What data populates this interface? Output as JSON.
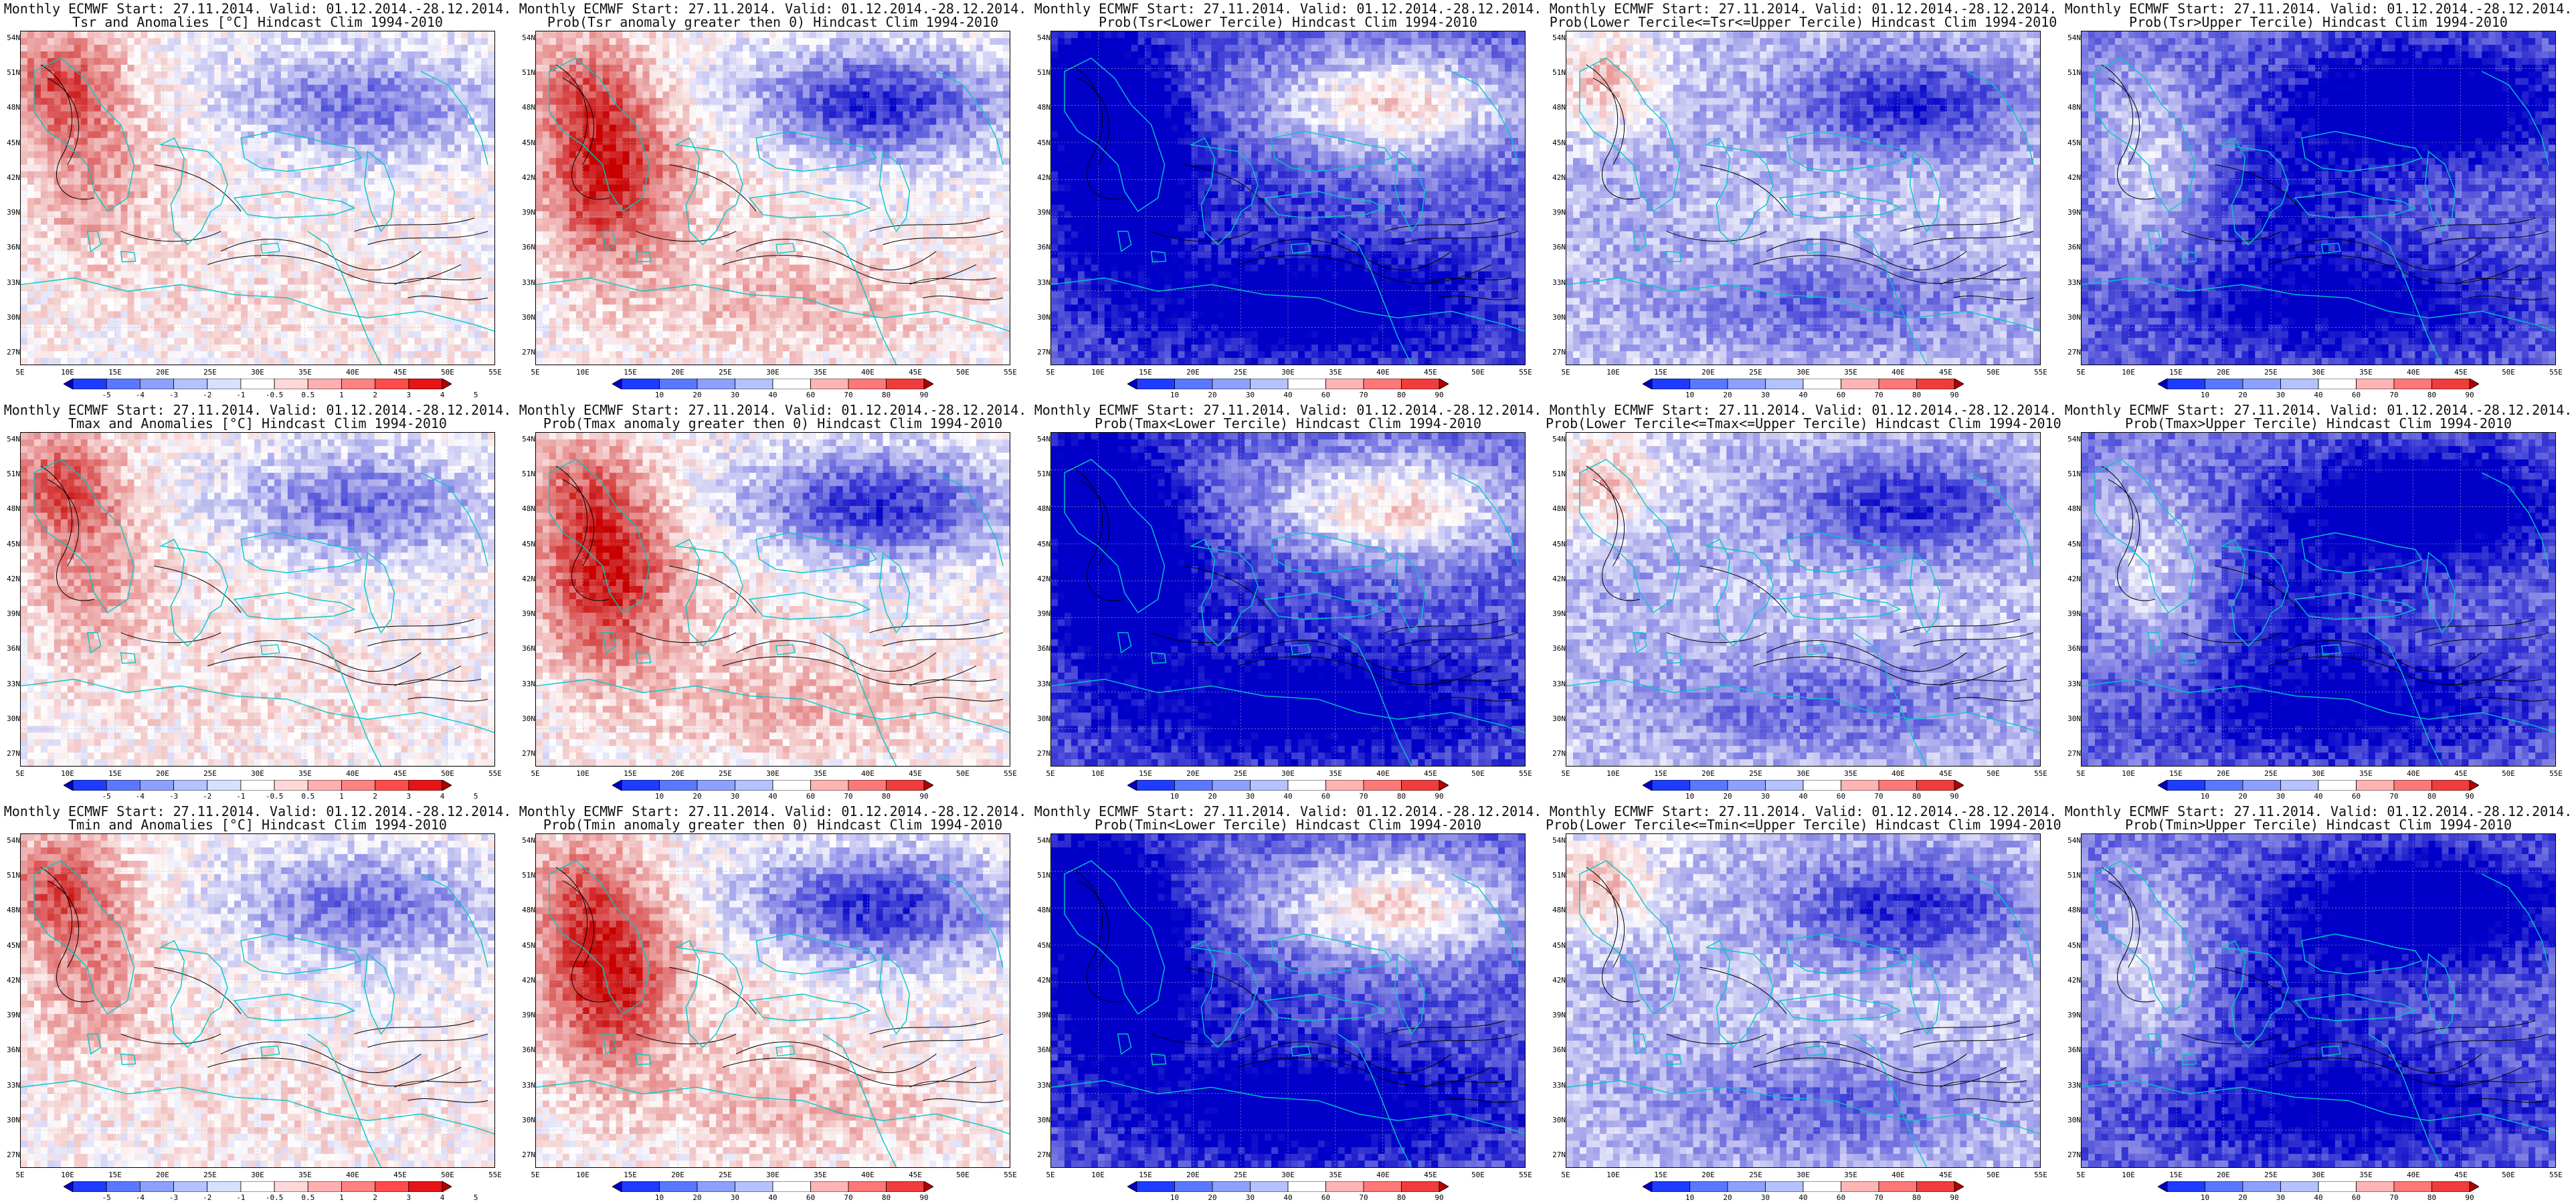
{
  "rows": [
    {
      "var": "Tsr",
      "panels": [
        {
          "type": "anom",
          "l1": "Monthly ECMWF Start: 27.11.2014. Valid: 01.12.2014.-28.12.2014.",
          "l2": "Tsr and Anomalies [°C] Hindcast Clim 1994-2010"
        },
        {
          "type": "pgt0",
          "l1": "Monthly ECMWF Start: 27.11.2014. Valid: 01.12.2014.-28.12.2014.",
          "l2": "Prob(Tsr anomaly greater then 0) Hindcast Clim 1994-2010"
        },
        {
          "type": "plow",
          "l1": "Monthly ECMWF Start: 27.11.2014. Valid: 01.12.2014.-28.12.2014.",
          "l2": "Prob(Tsr<Lower Tercile) Hindcast Clim 1994-2010"
        },
        {
          "type": "pmid",
          "l1": "Monthly ECMWF Start: 27.11.2014. Valid: 01.12.2014.-28.12.2014.",
          "l2": "Prob(Lower Tercile<=Tsr<=Upper Tercile) Hindcast Clim 1994-2010"
        },
        {
          "type": "pup",
          "l1": "Monthly ECMWF Start: 27.11.2014. Valid: 01.12.2014.-28.12.2014.",
          "l2": "Prob(Tsr>Upper Tercile) Hindcast Clim 1994-2010"
        }
      ]
    },
    {
      "var": "Tmax",
      "panels": [
        {
          "type": "anom",
          "l1": "Monthly ECMWF Start: 27.11.2014. Valid: 01.12.2014.-28.12.2014.",
          "l2": "Tmax and Anomalies [°C] Hindcast Clim 1994-2010"
        },
        {
          "type": "pgt0",
          "l1": "Monthly ECMWF Start: 27.11.2014. Valid: 01.12.2014.-28.12.2014.",
          "l2": "Prob(Tmax anomaly greater then 0) Hindcast Clim 1994-2010"
        },
        {
          "type": "plow",
          "l1": "Monthly ECMWF Start: 27.11.2014. Valid: 01.12.2014.-28.12.2014.",
          "l2": "Prob(Tmax<Lower Tercile) Hindcast Clim 1994-2010"
        },
        {
          "type": "pmid",
          "l1": "Monthly ECMWF Start: 27.11.2014. Valid: 01.12.2014.-28.12.2014.",
          "l2": "Prob(Lower Tercile<=Tmax<=Upper Tercile) Hindcast Clim 1994-2010"
        },
        {
          "type": "pup",
          "l1": "Monthly ECMWF Start: 27.11.2014. Valid: 01.12.2014.-28.12.2014.",
          "l2": "Prob(Tmax>Upper Tercile) Hindcast Clim 1994-2010"
        }
      ]
    },
    {
      "var": "Tmin",
      "panels": [
        {
          "type": "anom",
          "l1": "Monthly ECMWF Start: 27.11.2014. Valid: 01.12.2014.-28.12.2014.",
          "l2": "Tmin and Anomalies [°C] Hindcast Clim 1994-2010"
        },
        {
          "type": "pgt0",
          "l1": "Monthly ECMWF Start: 27.11.2014. Valid: 01.12.2014.-28.12.2014.",
          "l2": "Prob(Tmin anomaly greater then 0) Hindcast Clim 1994-2010"
        },
        {
          "type": "plow",
          "l1": "Monthly ECMWF Start: 27.11.2014. Valid: 01.12.2014.-28.12.2014.",
          "l2": "Prob(Tmin<Lower Tercile) Hindcast Clim 1994-2010"
        },
        {
          "type": "pmid",
          "l1": "Monthly ECMWF Start: 27.11.2014. Valid: 01.12.2014.-28.12.2014.",
          "l2": "Prob(Lower Tercile<=Tmin<=Upper Tercile) Hindcast Clim 1994-2010"
        },
        {
          "type": "pup",
          "l1": "Monthly ECMWF Start: 27.11.2014. Valid: 01.12.2014.-28.12.2014.",
          "l2": "Prob(Tmin>Upper Tercile) Hindcast Clim 1994-2010"
        }
      ]
    }
  ],
  "lat_labels": [
    "54N",
    "51N",
    "48N",
    "45N",
    "42N",
    "39N",
    "36N",
    "33N",
    "30N",
    "27N"
  ],
  "lon_labels": [
    "5E",
    "10E",
    "15E",
    "20E",
    "25E",
    "30E",
    "35E",
    "40E",
    "45E",
    "50E",
    "55E"
  ],
  "colorbars": {
    "anom": {
      "labels": [
        "-5",
        "-4",
        "-3",
        "-2",
        "-1",
        "-0.5",
        "0.5",
        "1",
        "2",
        "3",
        "4",
        "5"
      ],
      "colors": [
        "#0000c8",
        "#1e3cff",
        "#5a78ff",
        "#8ca0ff",
        "#b4c3ff",
        "#d7e1ff",
        "#ffffff",
        "#ffd7d7",
        "#ffafaf",
        "#ff8282",
        "#ff4b4b",
        "#e61414",
        "#b40000"
      ]
    },
    "prob": {
      "labels": [
        "10",
        "20",
        "30",
        "40",
        "60",
        "70",
        "80",
        "90"
      ],
      "colors": [
        "#0000c8",
        "#1e3cff",
        "#5a78ff",
        "#8ca0ff",
        "#b4c3ff",
        "#ffffff",
        "#ffb4b4",
        "#ff7878",
        "#f03c3c",
        "#b40000"
      ]
    }
  },
  "colors": {
    "coastline": "#00c8c8",
    "contour": "#000000",
    "grid": "#b4b4b4"
  }
}
